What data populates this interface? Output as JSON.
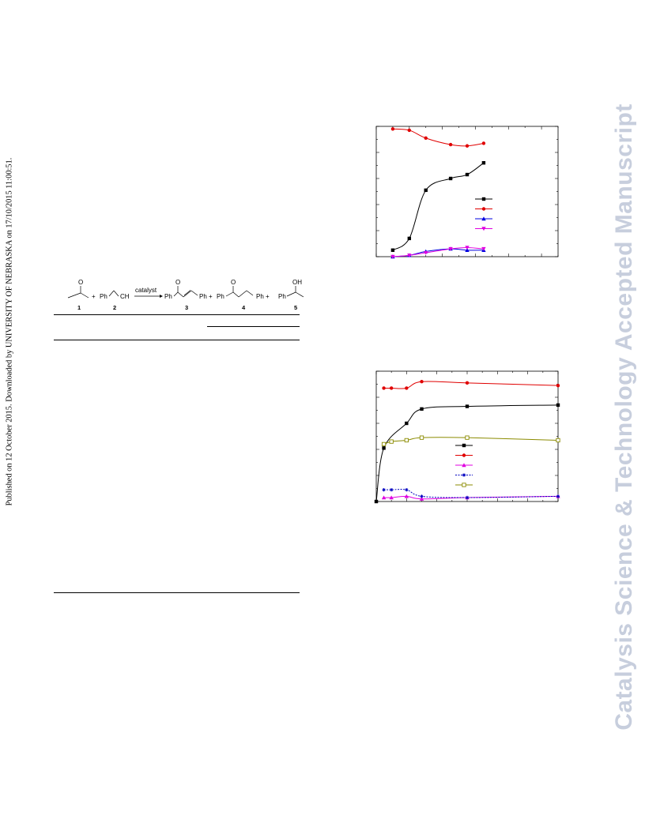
{
  "stamp": {
    "published_text": "Published on 12 October 2015. Downloaded by UNIVERSITY OF NEBRASKA on 17/10/2015 11:00:51."
  },
  "watermark": {
    "text": "Catalysis Science & Technology Accepted Manuscript",
    "color": "#c7cedd"
  },
  "scheme": {
    "arrow_label": "catalyst",
    "items": [
      {
        "label": "O",
        "role": "carbonyl"
      },
      {
        "label": "Ph",
        "role": "substituent"
      },
      {
        "label": "CH",
        "role": "substituent"
      },
      {
        "label": "O",
        "role": "carbonyl"
      },
      {
        "label": "Ph",
        "role": "substituent"
      },
      {
        "label": "Ph +",
        "role": "substituent"
      },
      {
        "label": "O",
        "role": "carbonyl"
      },
      {
        "label": "Ph",
        "role": "substituent"
      },
      {
        "label": "Ph +",
        "role": "substituent"
      },
      {
        "label": "OH",
        "role": "hydroxyl"
      },
      {
        "label": "Ph",
        "role": "substituent"
      }
    ],
    "plus": "+",
    "numbers": [
      "1",
      "2",
      "3",
      "4",
      "5"
    ]
  },
  "chart_data": [
    {
      "type": "line",
      "xlim": [
        0,
        11
      ],
      "ylim": [
        0,
        100
      ],
      "grid": false,
      "legend_position": "center-right",
      "series": [
        {
          "x": [
            1,
            2,
            3,
            4.5,
            5.5,
            6.5
          ],
          "values": [
            5,
            14,
            51,
            60,
            63,
            72
          ],
          "color": "#000000",
          "marker": "square"
        },
        {
          "x": [
            1,
            2,
            3,
            4.5,
            5.5,
            6.5
          ],
          "values": [
            98,
            97,
            91,
            86,
            85,
            87
          ],
          "color": "#e00000",
          "marker": "circle"
        },
        {
          "x": [
            1,
            2,
            3,
            4.5,
            5.5,
            6.5
          ],
          "values": [
            0,
            1,
            4,
            6,
            5,
            5
          ],
          "color": "#0000e0",
          "marker": "triangle-up"
        },
        {
          "x": [
            1,
            2,
            3,
            4.5,
            5.5,
            6.5
          ],
          "values": [
            0,
            1,
            3,
            6,
            7,
            6
          ],
          "color": "#e000e0",
          "marker": "triangle-down"
        }
      ]
    },
    {
      "type": "line",
      "xlim": [
        0,
        12
      ],
      "ylim": [
        0,
        100
      ],
      "grid": false,
      "legend_position": "center-right",
      "series": [
        {
          "x": [
            0,
            0.5,
            2,
            3,
            6,
            12
          ],
          "values": [
            0,
            41,
            60,
            71,
            73,
            74
          ],
          "color": "#000000",
          "marker": "square"
        },
        {
          "x": [
            0.5,
            1,
            2,
            3,
            6,
            12
          ],
          "values": [
            87,
            87,
            87,
            92,
            91,
            89
          ],
          "color": "#e00000",
          "marker": "circle"
        },
        {
          "x": [
            0.5,
            1,
            2,
            3,
            6,
            12
          ],
          "values": [
            3,
            3,
            4,
            2,
            3,
            4
          ],
          "color": "#e000e0",
          "marker": "triangle-up"
        },
        {
          "x": [
            0.5,
            1,
            2,
            3,
            6,
            12
          ],
          "values": [
            9,
            9,
            9,
            4,
            3,
            4
          ],
          "color": "#0000c0",
          "marker": "star"
        },
        {
          "x": [
            0.5,
            1,
            2,
            3,
            6,
            12
          ],
          "values": [
            44,
            46,
            47,
            49,
            49,
            47
          ],
          "color": "#8b8b00",
          "marker": "open-square"
        }
      ]
    }
  ]
}
